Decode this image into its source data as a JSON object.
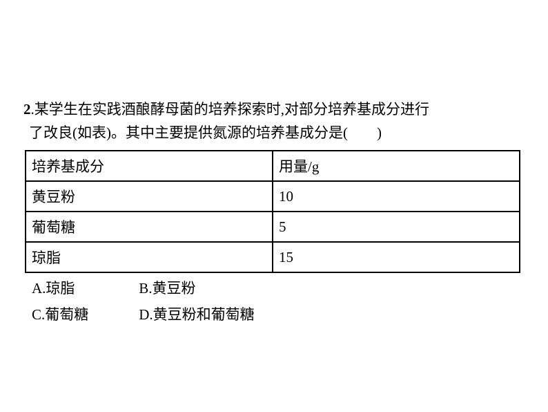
{
  "question": {
    "number": "2",
    "text_line1": ".某学生在实践酒酿酵母菌的培养探索时,对部分培养基成分进行",
    "text_line2": "了改良(如表)。其中主要提供氮源的培养基成分是(　　)"
  },
  "table": {
    "header_col1": "培养基成分",
    "header_col2": "用量/g",
    "rows": [
      {
        "ingredient": "黄豆粉",
        "amount": "10"
      },
      {
        "ingredient": "葡萄糖",
        "amount": "5"
      },
      {
        "ingredient": "琼脂",
        "amount": "15"
      }
    ],
    "border_color": "#000000",
    "text_color": "#000000",
    "font_size": 21
  },
  "options": {
    "a": "A.琼脂",
    "b": "B.黄豆粉",
    "c": "C.葡萄糖",
    "d": "D.黄豆粉和葡萄糖"
  },
  "styling": {
    "background_color": "#ffffff",
    "text_color": "#000000",
    "font_size": 21,
    "font_family": "SimSun"
  }
}
